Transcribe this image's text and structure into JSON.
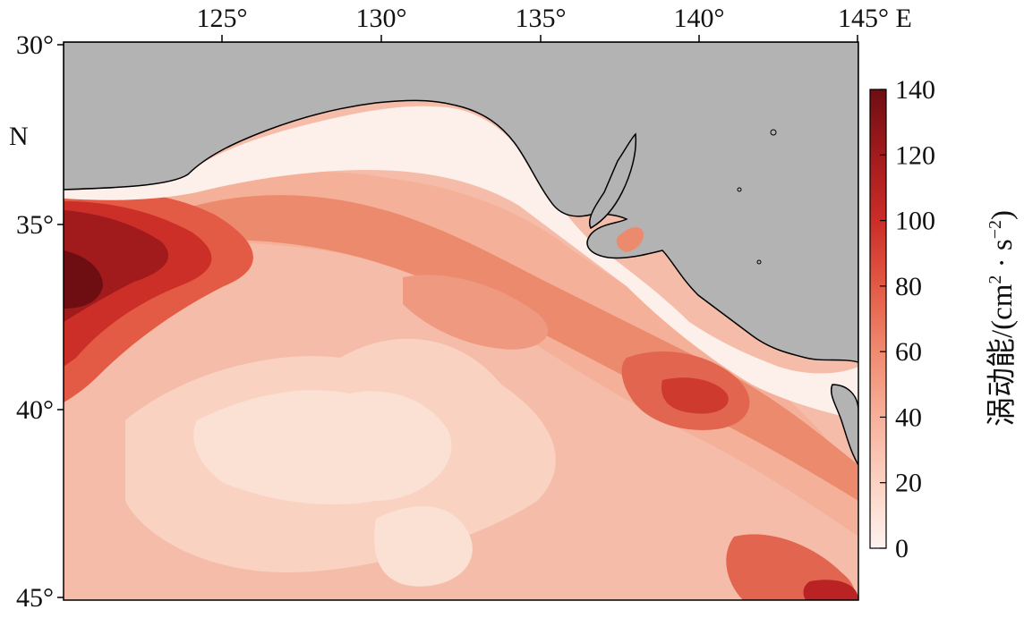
{
  "axes": {
    "lon_ticks": [
      "125°",
      "130°",
      "135°",
      "140°",
      "145° E"
    ],
    "lat_ticks": [
      "30°",
      "35°",
      "40°",
      "45°"
    ],
    "lat_suffix": "N"
  },
  "colorbar": {
    "title_main": "涡动能/(cm",
    "sup1": "2",
    "title_mid": " · s",
    "sup2": "−2",
    "title_end": ")",
    "ticks": [
      "0",
      "20",
      "40",
      "60",
      "80",
      "100",
      "120",
      "140"
    ],
    "range": [
      0,
      140
    ],
    "colors": [
      "#fff2ef",
      "#fcd3c3",
      "#f8b29c",
      "#f08a6f",
      "#e35a45",
      "#cc2e28",
      "#a11a1c",
      "#6e0e12"
    ]
  },
  "map": {
    "land_color": "#b3b3b3",
    "coast_color": "#000000"
  }
}
